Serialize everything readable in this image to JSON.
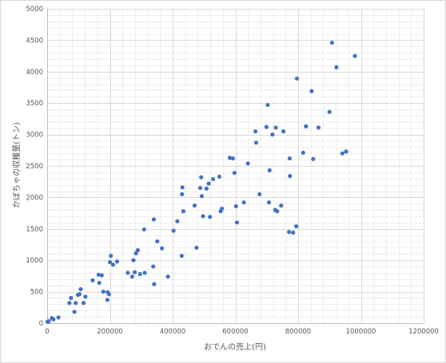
{
  "chart_data": {
    "type": "scatter",
    "title": "",
    "xlabel": "おでんの売上(円)",
    "ylabel": "かぼちゃの収穫量(トン)",
    "xlim": [
      0,
      1200000
    ],
    "ylim": [
      0,
      5000
    ],
    "x_ticks": [
      0,
      200000,
      400000,
      600000,
      800000,
      1000000,
      1200000
    ],
    "y_ticks": [
      0,
      500,
      1000,
      1500,
      2000,
      2500,
      3000,
      3500,
      4000,
      4500,
      5000
    ],
    "x_tick_labels": [
      "0",
      "200000",
      "400000",
      "600000",
      "800000",
      "1000000",
      "1200000"
    ],
    "y_tick_labels": [
      "0",
      "500",
      "1000",
      "1500",
      "2000",
      "2500",
      "3000",
      "3500",
      "4000",
      "4500",
      "5000"
    ],
    "grid": "major and minor",
    "legend": "none",
    "marker_color": "#4472c4",
    "points": [
      [
        1000,
        20
      ],
      [
        5000,
        30
      ],
      [
        15000,
        80
      ],
      [
        20000,
        60
      ],
      [
        36000,
        90
      ],
      [
        71000,
        320
      ],
      [
        76000,
        400
      ],
      [
        87000,
        180
      ],
      [
        91000,
        320
      ],
      [
        98000,
        450
      ],
      [
        103000,
        460
      ],
      [
        107000,
        540
      ],
      [
        116000,
        320
      ],
      [
        122000,
        420
      ],
      [
        145000,
        680
      ],
      [
        164000,
        770
      ],
      [
        166000,
        640
      ],
      [
        174000,
        760
      ],
      [
        179000,
        500
      ],
      [
        192000,
        370
      ],
      [
        193000,
        490
      ],
      [
        197000,
        460
      ],
      [
        200000,
        970
      ],
      [
        203000,
        1070
      ],
      [
        210000,
        930
      ],
      [
        223000,
        980
      ],
      [
        257000,
        800
      ],
      [
        271000,
        740
      ],
      [
        275000,
        1000
      ],
      [
        279000,
        810
      ],
      [
        283000,
        1110
      ],
      [
        289000,
        1160
      ],
      [
        296000,
        780
      ],
      [
        309000,
        1490
      ],
      [
        311000,
        800
      ],
      [
        338000,
        900
      ],
      [
        340000,
        1650
      ],
      [
        341000,
        620
      ],
      [
        351000,
        1300
      ],
      [
        366000,
        1190
      ],
      [
        385000,
        740
      ],
      [
        403000,
        1470
      ],
      [
        415000,
        1620
      ],
      [
        429000,
        1070
      ],
      [
        430000,
        2050
      ],
      [
        431000,
        2160
      ],
      [
        434000,
        1780
      ],
      [
        470000,
        1870
      ],
      [
        476000,
        1200
      ],
      [
        488000,
        2150
      ],
      [
        491000,
        2320
      ],
      [
        493000,
        2020
      ],
      [
        497000,
        1700
      ],
      [
        508000,
        2140
      ],
      [
        515000,
        2220
      ],
      [
        519000,
        1690
      ],
      [
        529000,
        2290
      ],
      [
        549000,
        2330
      ],
      [
        553000,
        1780
      ],
      [
        557000,
        1820
      ],
      [
        582000,
        2630
      ],
      [
        592000,
        2620
      ],
      [
        597000,
        2390
      ],
      [
        602000,
        1860
      ],
      [
        605000,
        1600
      ],
      [
        627000,
        1920
      ],
      [
        640000,
        2540
      ],
      [
        664000,
        3050
      ],
      [
        666000,
        2870
      ],
      [
        677000,
        2050
      ],
      [
        699000,
        3120
      ],
      [
        703000,
        3470
      ],
      [
        707000,
        1920
      ],
      [
        709000,
        2430
      ],
      [
        718000,
        3000
      ],
      [
        727000,
        1800
      ],
      [
        729000,
        3110
      ],
      [
        733000,
        1780
      ],
      [
        746000,
        1870
      ],
      [
        753000,
        3050
      ],
      [
        771000,
        1450
      ],
      [
        773000,
        2620
      ],
      [
        774000,
        2340
      ],
      [
        784000,
        1440
      ],
      [
        794000,
        1540
      ],
      [
        796000,
        3890
      ],
      [
        816000,
        2710
      ],
      [
        825000,
        3130
      ],
      [
        843000,
        3690
      ],
      [
        848000,
        2610
      ],
      [
        865000,
        3110
      ],
      [
        900000,
        3360
      ],
      [
        908000,
        4460
      ],
      [
        922000,
        4070
      ],
      [
        941000,
        2700
      ],
      [
        953000,
        2730
      ],
      [
        981000,
        4250
      ]
    ]
  }
}
